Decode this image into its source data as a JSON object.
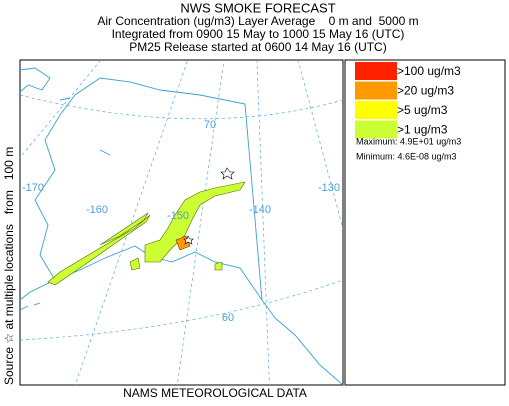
{
  "header": {
    "title": "NWS SMOKE FORECAST",
    "lines": [
      "Air Concentration (ug/m3) Layer Average    0 m and  5000 m",
      "Integrated from 0900 15 May to 1000 15 May 16 (UTC)",
      "PM25 Release started at 0600 14 May 16 (UTC)"
    ]
  },
  "side_label": "Source ☆ at multiple locations   from   100 m",
  "footer": "NAMS METEOROLOGICAL DATA",
  "legend": {
    "items": [
      {
        "label": ">100 ug/m3",
        "color": "#ff2200"
      },
      {
        "label": ">20 ug/m3",
        "color": "#ff9900"
      },
      {
        "label": ">5 ug/m3",
        "color": "#ffff00"
      },
      {
        "label": ">1 ug/m3",
        "color": "#ccff33"
      }
    ],
    "maximum": "Maximum: 4.9E+01 ug/m3",
    "minimum": "Minimum: 4.6E-08 ug/m3"
  },
  "map": {
    "labels": [
      "70",
      "-170",
      "-160",
      "-150",
      "-140",
      "-130",
      "60"
    ]
  }
}
